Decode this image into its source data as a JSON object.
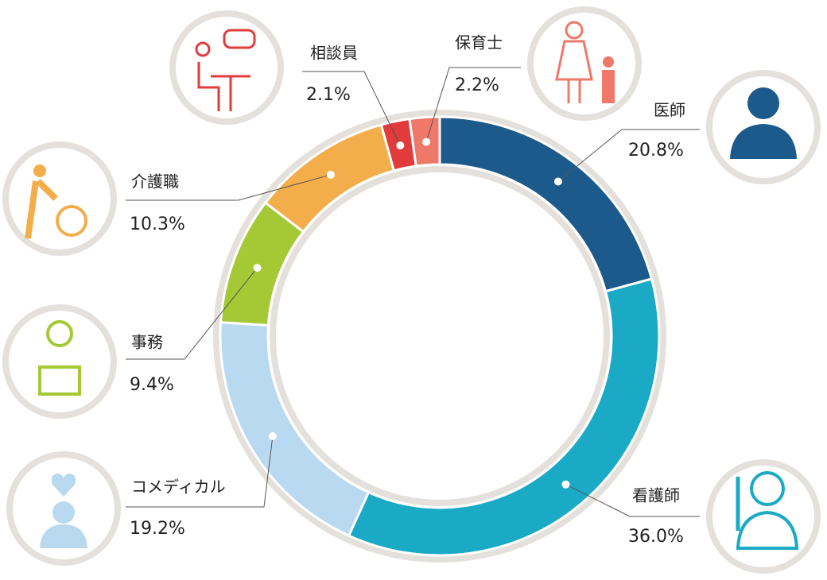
{
  "chart_data": {
    "type": "donut",
    "categories": [
      "医師",
      "看護師",
      "コメディカル",
      "事務",
      "介護職",
      "相談員",
      "保育士"
    ],
    "values": [
      20.8,
      36.0,
      19.2,
      9.4,
      10.3,
      2.1,
      2.2
    ],
    "value_labels": [
      "20.8%",
      "36.0%",
      "19.2%",
      "9.4%",
      "10.3%",
      "2.1%",
      "2.2%"
    ],
    "colors": [
      "#1b5a8a",
      "#1aaac6",
      "#b9d9f1",
      "#a4c935",
      "#f3ae4b",
      "#e13b3b",
      "#ef7868"
    ]
  }
}
